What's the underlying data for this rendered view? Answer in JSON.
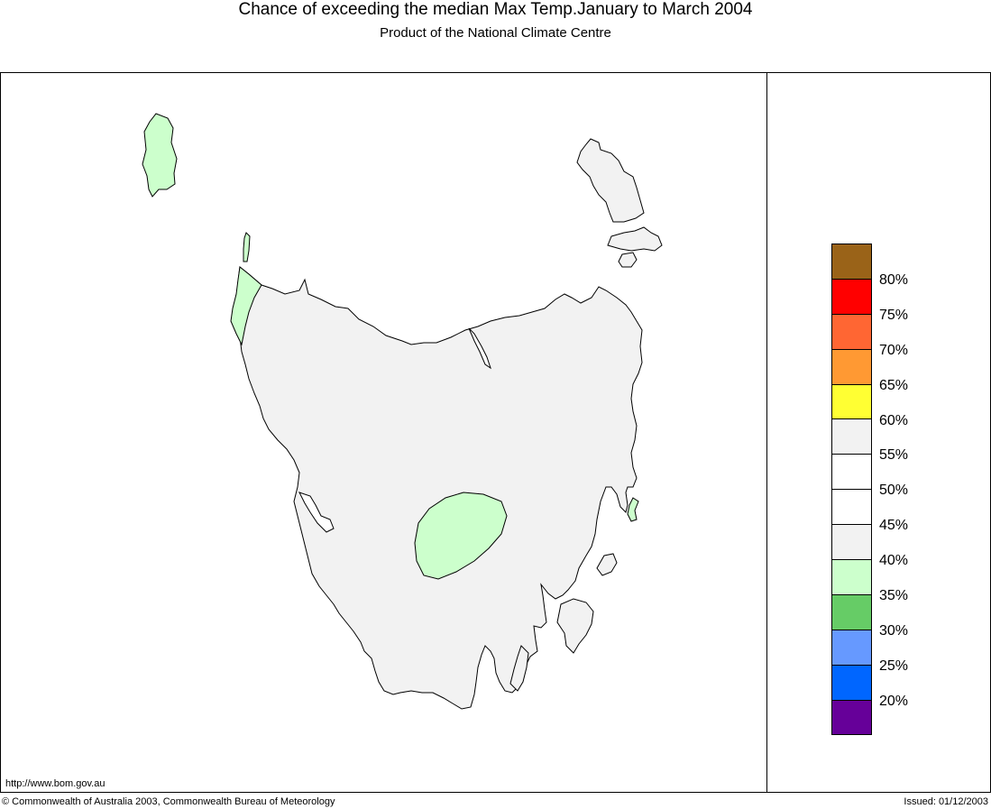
{
  "header": {
    "title": "Chance of exceeding the median Max Temp.January to March 2004",
    "subtitle": "Product of the National Climate Centre"
  },
  "legend": {
    "swatches": [
      {
        "color": "#9a6318"
      },
      {
        "color": "#ff0000"
      },
      {
        "color": "#ff6633"
      },
      {
        "color": "#ff9933"
      },
      {
        "color": "#ffff33"
      },
      {
        "color": "#f2f2f2"
      },
      {
        "color": "#ffffff"
      },
      {
        "color": "#ffffff"
      },
      {
        "color": "#f2f2f2"
      },
      {
        "color": "#ccffcc"
      },
      {
        "color": "#66cc66"
      },
      {
        "color": "#6699ff"
      },
      {
        "color": "#0066ff"
      },
      {
        "color": "#660099"
      }
    ],
    "labels": [
      "80%",
      "75%",
      "70%",
      "65%",
      "60%",
      "55%",
      "50%",
      "45%",
      "40%",
      "35%",
      "30%",
      "25%",
      "20%"
    ]
  },
  "map": {
    "land_color": "#f2f2f2",
    "low_chance_color": "#ccffcc"
  },
  "footer": {
    "url": "http://www.bom.gov.au",
    "copyright": "© Commonwealth of Australia 2003, Commonwealth Bureau of Meteorology",
    "issued": "Issued: 01/12/2003"
  }
}
